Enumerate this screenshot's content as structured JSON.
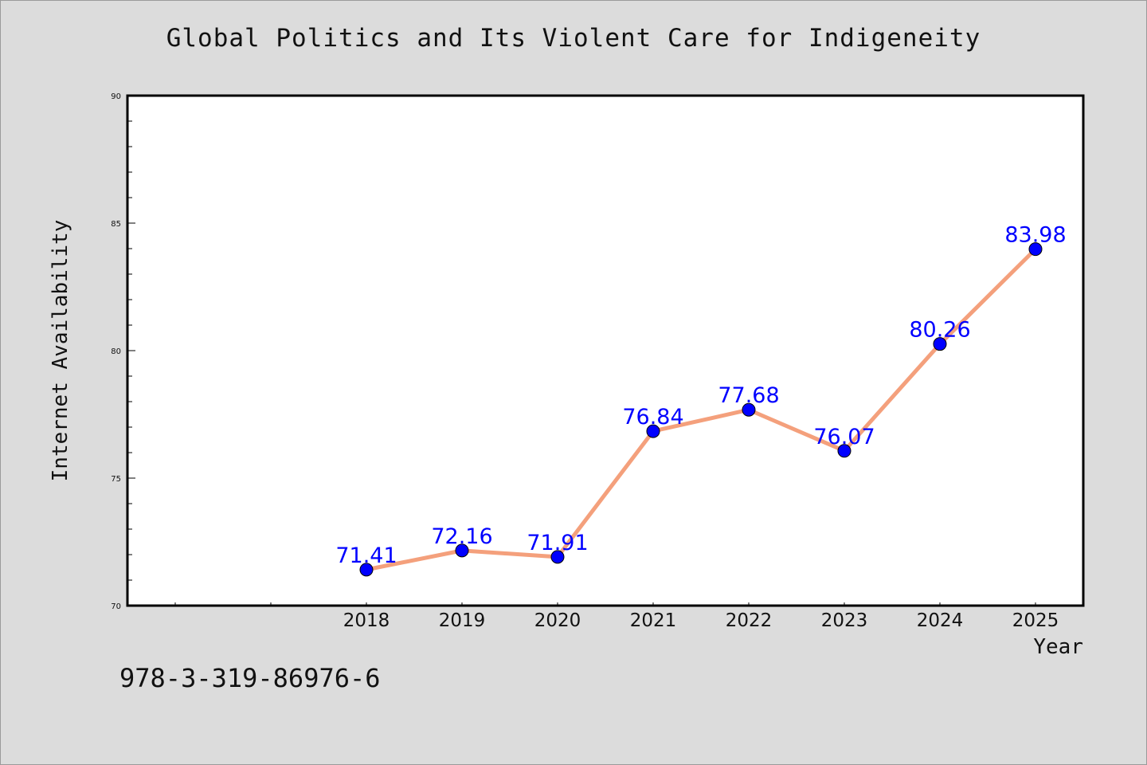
{
  "chart_data": {
    "type": "line",
    "title": "Global Politics and Its Violent Care for Indigeneity",
    "xlabel": "Year",
    "ylabel": "Internet Availability",
    "categories": [
      "2018",
      "2019",
      "2020",
      "2021",
      "2022",
      "2023",
      "2024",
      "2025"
    ],
    "series": [
      {
        "values": [
          71.41,
          72.16,
          71.91,
          76.84,
          77.68,
          76.07,
          80.26,
          83.98
        ],
        "labels": [
          "71.41",
          "72.16",
          "71.91",
          "76.84",
          "77.68",
          "76.07",
          "80.26",
          "83.98"
        ]
      }
    ],
    "ylim": [
      70,
      90
    ],
    "yticks": [
      "70",
      "75",
      "80",
      "85",
      "90"
    ],
    "grid": false,
    "legend": "none",
    "colors": {
      "line": "#f4a07c",
      "marker": "#0000ff",
      "label": "#0000ff",
      "background": "#dcdcdc",
      "plot_bg": "#ffffff"
    }
  },
  "isbn": "978-3-319-86976-6"
}
